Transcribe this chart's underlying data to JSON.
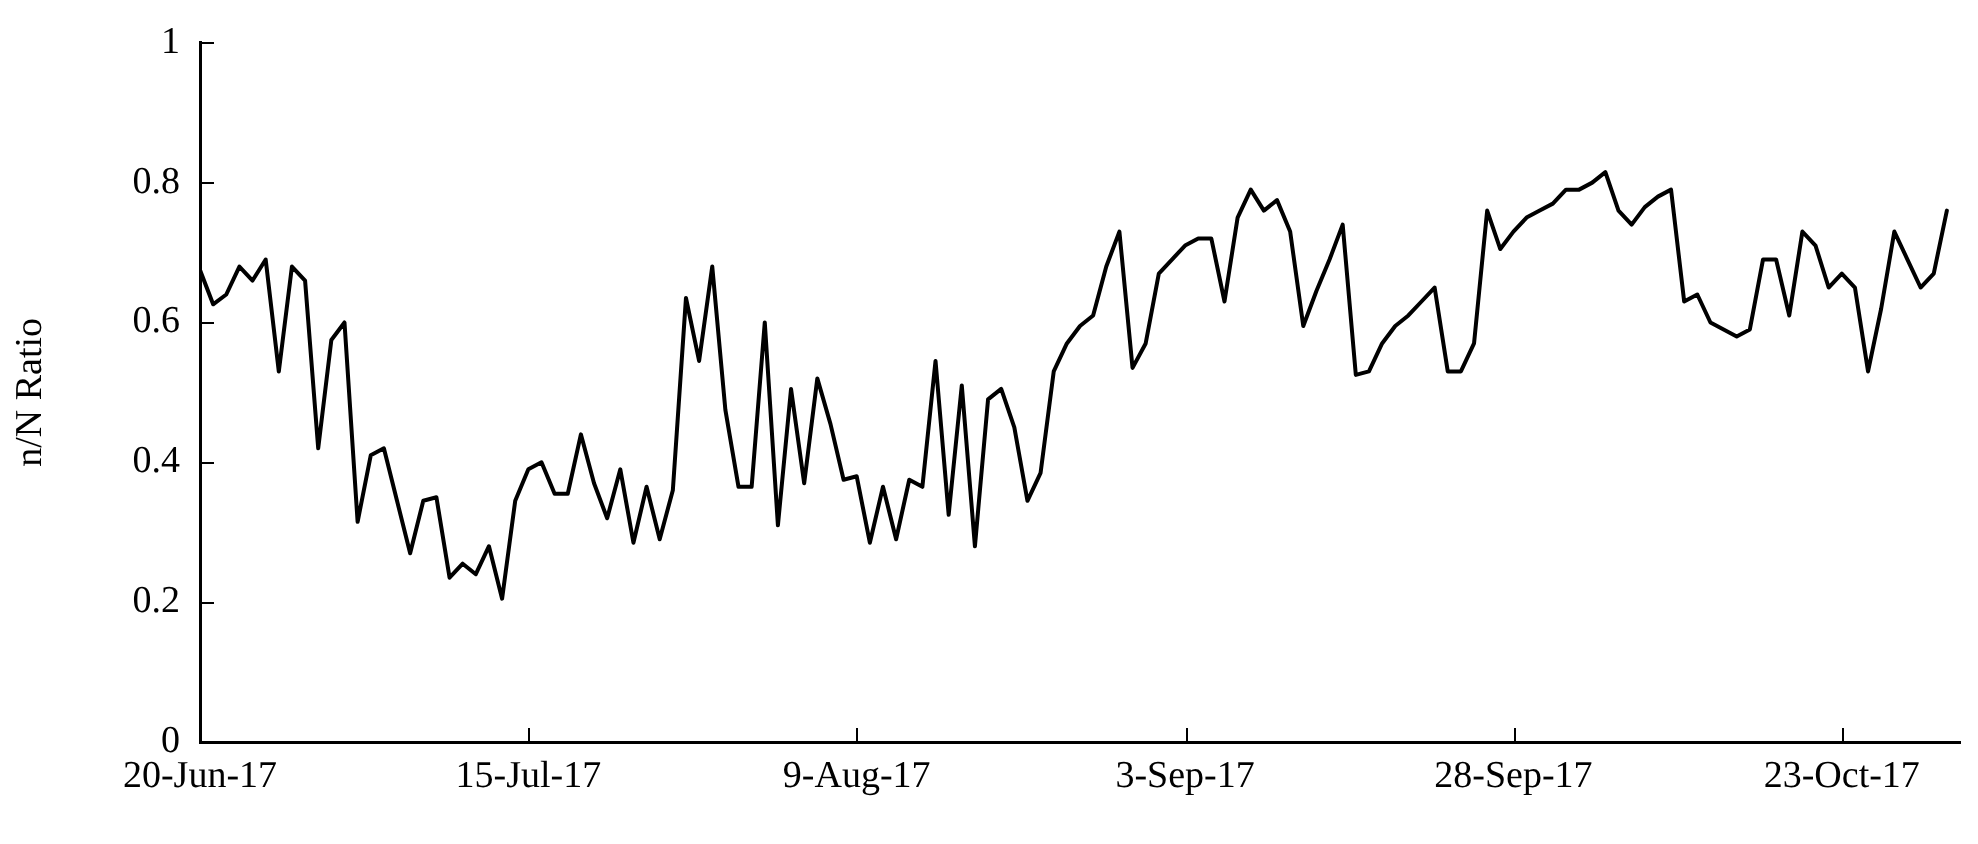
{
  "chart_data": {
    "type": "line",
    "ylabel": "n/N Ratio",
    "x": [
      "2017-06-20",
      "2017-06-21",
      "2017-06-22",
      "2017-06-23",
      "2017-06-24",
      "2017-06-25",
      "2017-06-26",
      "2017-06-27",
      "2017-06-28",
      "2017-06-29",
      "2017-06-30",
      "2017-07-01",
      "2017-07-02",
      "2017-07-03",
      "2017-07-04",
      "2017-07-05",
      "2017-07-06",
      "2017-07-07",
      "2017-07-08",
      "2017-07-09",
      "2017-07-10",
      "2017-07-11",
      "2017-07-12",
      "2017-07-13",
      "2017-07-14",
      "2017-07-15",
      "2017-07-16",
      "2017-07-17",
      "2017-07-18",
      "2017-07-19",
      "2017-07-20",
      "2017-07-21",
      "2017-07-22",
      "2017-07-23",
      "2017-07-24",
      "2017-07-25",
      "2017-07-26",
      "2017-07-27",
      "2017-07-28",
      "2017-07-29",
      "2017-07-30",
      "2017-07-31",
      "2017-08-01",
      "2017-08-02",
      "2017-08-03",
      "2017-08-04",
      "2017-08-05",
      "2017-08-06",
      "2017-08-07",
      "2017-08-08",
      "2017-08-09",
      "2017-08-10",
      "2017-08-11",
      "2017-08-12",
      "2017-08-13",
      "2017-08-14",
      "2017-08-15",
      "2017-08-16",
      "2017-08-17",
      "2017-08-18",
      "2017-08-19",
      "2017-08-20",
      "2017-08-21",
      "2017-08-22",
      "2017-08-23",
      "2017-08-24",
      "2017-08-25",
      "2017-08-26",
      "2017-08-27",
      "2017-08-28",
      "2017-08-29",
      "2017-08-30",
      "2017-08-31",
      "2017-09-01",
      "2017-09-02",
      "2017-09-03",
      "2017-09-04",
      "2017-09-05",
      "2017-09-06",
      "2017-09-07",
      "2017-09-08",
      "2017-09-09",
      "2017-09-10",
      "2017-09-11",
      "2017-09-12",
      "2017-09-13",
      "2017-09-14",
      "2017-09-15",
      "2017-09-16",
      "2017-09-17",
      "2017-09-18",
      "2017-09-19",
      "2017-09-20",
      "2017-09-21",
      "2017-09-22",
      "2017-09-23",
      "2017-09-24",
      "2017-09-25",
      "2017-09-26",
      "2017-09-27",
      "2017-09-28",
      "2017-09-29",
      "2017-09-30",
      "2017-10-01",
      "2017-10-02",
      "2017-10-03",
      "2017-10-04",
      "2017-10-05",
      "2017-10-06",
      "2017-10-07",
      "2017-10-08",
      "2017-10-09",
      "2017-10-10",
      "2017-10-11",
      "2017-10-12",
      "2017-10-13",
      "2017-10-14",
      "2017-10-15",
      "2017-10-16",
      "2017-10-17",
      "2017-10-18",
      "2017-10-19",
      "2017-10-20",
      "2017-10-21",
      "2017-10-22",
      "2017-10-23",
      "2017-10-24",
      "2017-10-25",
      "2017-10-26",
      "2017-10-27",
      "2017-10-28",
      "2017-10-29",
      "2017-10-30",
      "2017-10-31"
    ],
    "series": [
      {
        "color": "#000000",
        "values": [
          0.675,
          0.626,
          0.64,
          0.68,
          0.66,
          0.69,
          0.53,
          0.68,
          0.66,
          0.42,
          0.575,
          0.6,
          0.315,
          0.41,
          0.42,
          0.345,
          0.27,
          0.345,
          0.35,
          0.235,
          0.255,
          0.24,
          0.28,
          0.205,
          0.345,
          0.39,
          0.4,
          0.355,
          0.355,
          0.44,
          0.37,
          0.32,
          0.39,
          0.285,
          0.365,
          0.29,
          0.36,
          0.635,
          0.545,
          0.68,
          0.475,
          0.365,
          0.365,
          0.6,
          0.31,
          0.505,
          0.37,
          0.52,
          0.455,
          0.375,
          0.38,
          0.285,
          0.365,
          0.29,
          0.375,
          0.365,
          0.545,
          0.325,
          0.51,
          0.28,
          0.49,
          0.505,
          0.45,
          0.345,
          0.385,
          0.53,
          0.57,
          0.595,
          0.61,
          0.68,
          0.73,
          0.535,
          0.57,
          0.67,
          0.69,
          0.71,
          0.72,
          0.72,
          0.63,
          0.75,
          0.79,
          0.76,
          0.775,
          0.73,
          0.595,
          0.645,
          0.69,
          0.74,
          0.525,
          0.53,
          0.57,
          0.595,
          0.61,
          0.63,
          0.65,
          0.53,
          0.53,
          0.57,
          0.76,
          0.705,
          0.73,
          0.75,
          0.76,
          0.77,
          0.79,
          0.79,
          0.8,
          0.815,
          0.76,
          0.74,
          0.765,
          0.78,
          0.79,
          0.63,
          0.64,
          0.6,
          0.59,
          0.58,
          0.59,
          0.69,
          0.69,
          0.61,
          0.73,
          0.71,
          0.65,
          0.67,
          0.65,
          0.53,
          0.62,
          0.73,
          0.69,
          0.65,
          0.67,
          0.76
        ]
      }
    ],
    "xlim": [
      "2017-06-20",
      "2017-11-01"
    ],
    "xticks": [
      {
        "value": "2017-06-20",
        "label": "20-Jun-17"
      },
      {
        "value": "2017-07-15",
        "label": "15-Jul-17"
      },
      {
        "value": "2017-08-09",
        "label": "9-Aug-17"
      },
      {
        "value": "2017-09-03",
        "label": "3-Sep-17"
      },
      {
        "value": "2017-09-28",
        "label": "28-Sep-17"
      },
      {
        "value": "2017-10-23",
        "label": "23-Oct-17"
      }
    ],
    "ylim": [
      0,
      1
    ],
    "yticks": [
      0,
      0.2,
      0.4,
      0.6,
      0.8,
      1
    ],
    "grid": false,
    "legend": false,
    "marker": "none",
    "line_style": "solid"
  }
}
